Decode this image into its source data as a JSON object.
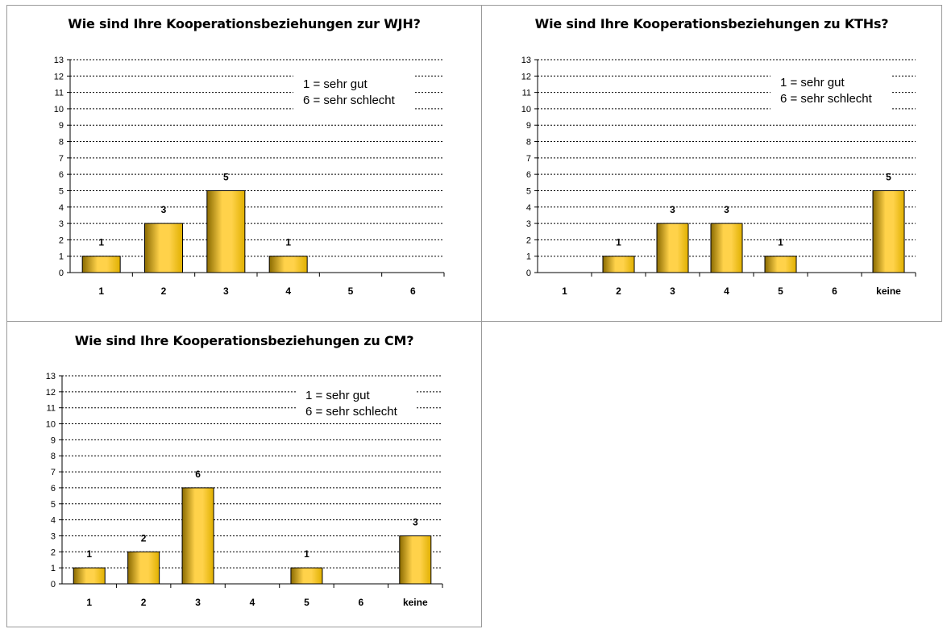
{
  "chart_data": [
    {
      "type": "bar",
      "title": "Wie sind Ihre Kooperationsbeziehungen zur WJH?",
      "categories": [
        "1",
        "2",
        "3",
        "4",
        "5",
        "6"
      ],
      "values": [
        1,
        3,
        5,
        1,
        null,
        null
      ],
      "ylim": [
        0,
        13
      ],
      "yticks": [
        0,
        1,
        2,
        3,
        4,
        5,
        6,
        7,
        8,
        9,
        10,
        11,
        12,
        13
      ],
      "annotations": [
        "1 = sehr gut",
        "6 = sehr schlecht"
      ],
      "legend": "none",
      "grid": "horizontal dotted"
    },
    {
      "type": "bar",
      "title": "Wie sind Ihre Kooperationsbeziehungen zu KTHs?",
      "categories": [
        "1",
        "2",
        "3",
        "4",
        "5",
        "6",
        "keine"
      ],
      "values": [
        null,
        1,
        3,
        3,
        1,
        null,
        5
      ],
      "ylim": [
        0,
        13
      ],
      "yticks": [
        0,
        1,
        2,
        3,
        4,
        5,
        6,
        7,
        8,
        9,
        10,
        11,
        12,
        13
      ],
      "annotations": [
        "1 = sehr gut",
        "6 = sehr schlecht"
      ],
      "legend": "none",
      "grid": "horizontal dotted"
    },
    {
      "type": "bar",
      "title": "Wie sind Ihre Kooperationsbeziehungen zu CM?",
      "categories": [
        "1",
        "2",
        "3",
        "4",
        "5",
        "6",
        "keine"
      ],
      "values": [
        1,
        2,
        6,
        null,
        1,
        null,
        3
      ],
      "ylim": [
        0,
        13
      ],
      "yticks": [
        0,
        1,
        2,
        3,
        4,
        5,
        6,
        7,
        8,
        9,
        10,
        11,
        12,
        13
      ],
      "annotations": [
        "1 = sehr gut",
        "6 = sehr schlecht"
      ],
      "legend": "none",
      "grid": "horizontal dotted"
    }
  ],
  "colors": {
    "bar_light": "#ffd24a",
    "bar_mid": "#e0b000",
    "bar_dark": "#8a6a00",
    "bar_edge": "#000000"
  }
}
